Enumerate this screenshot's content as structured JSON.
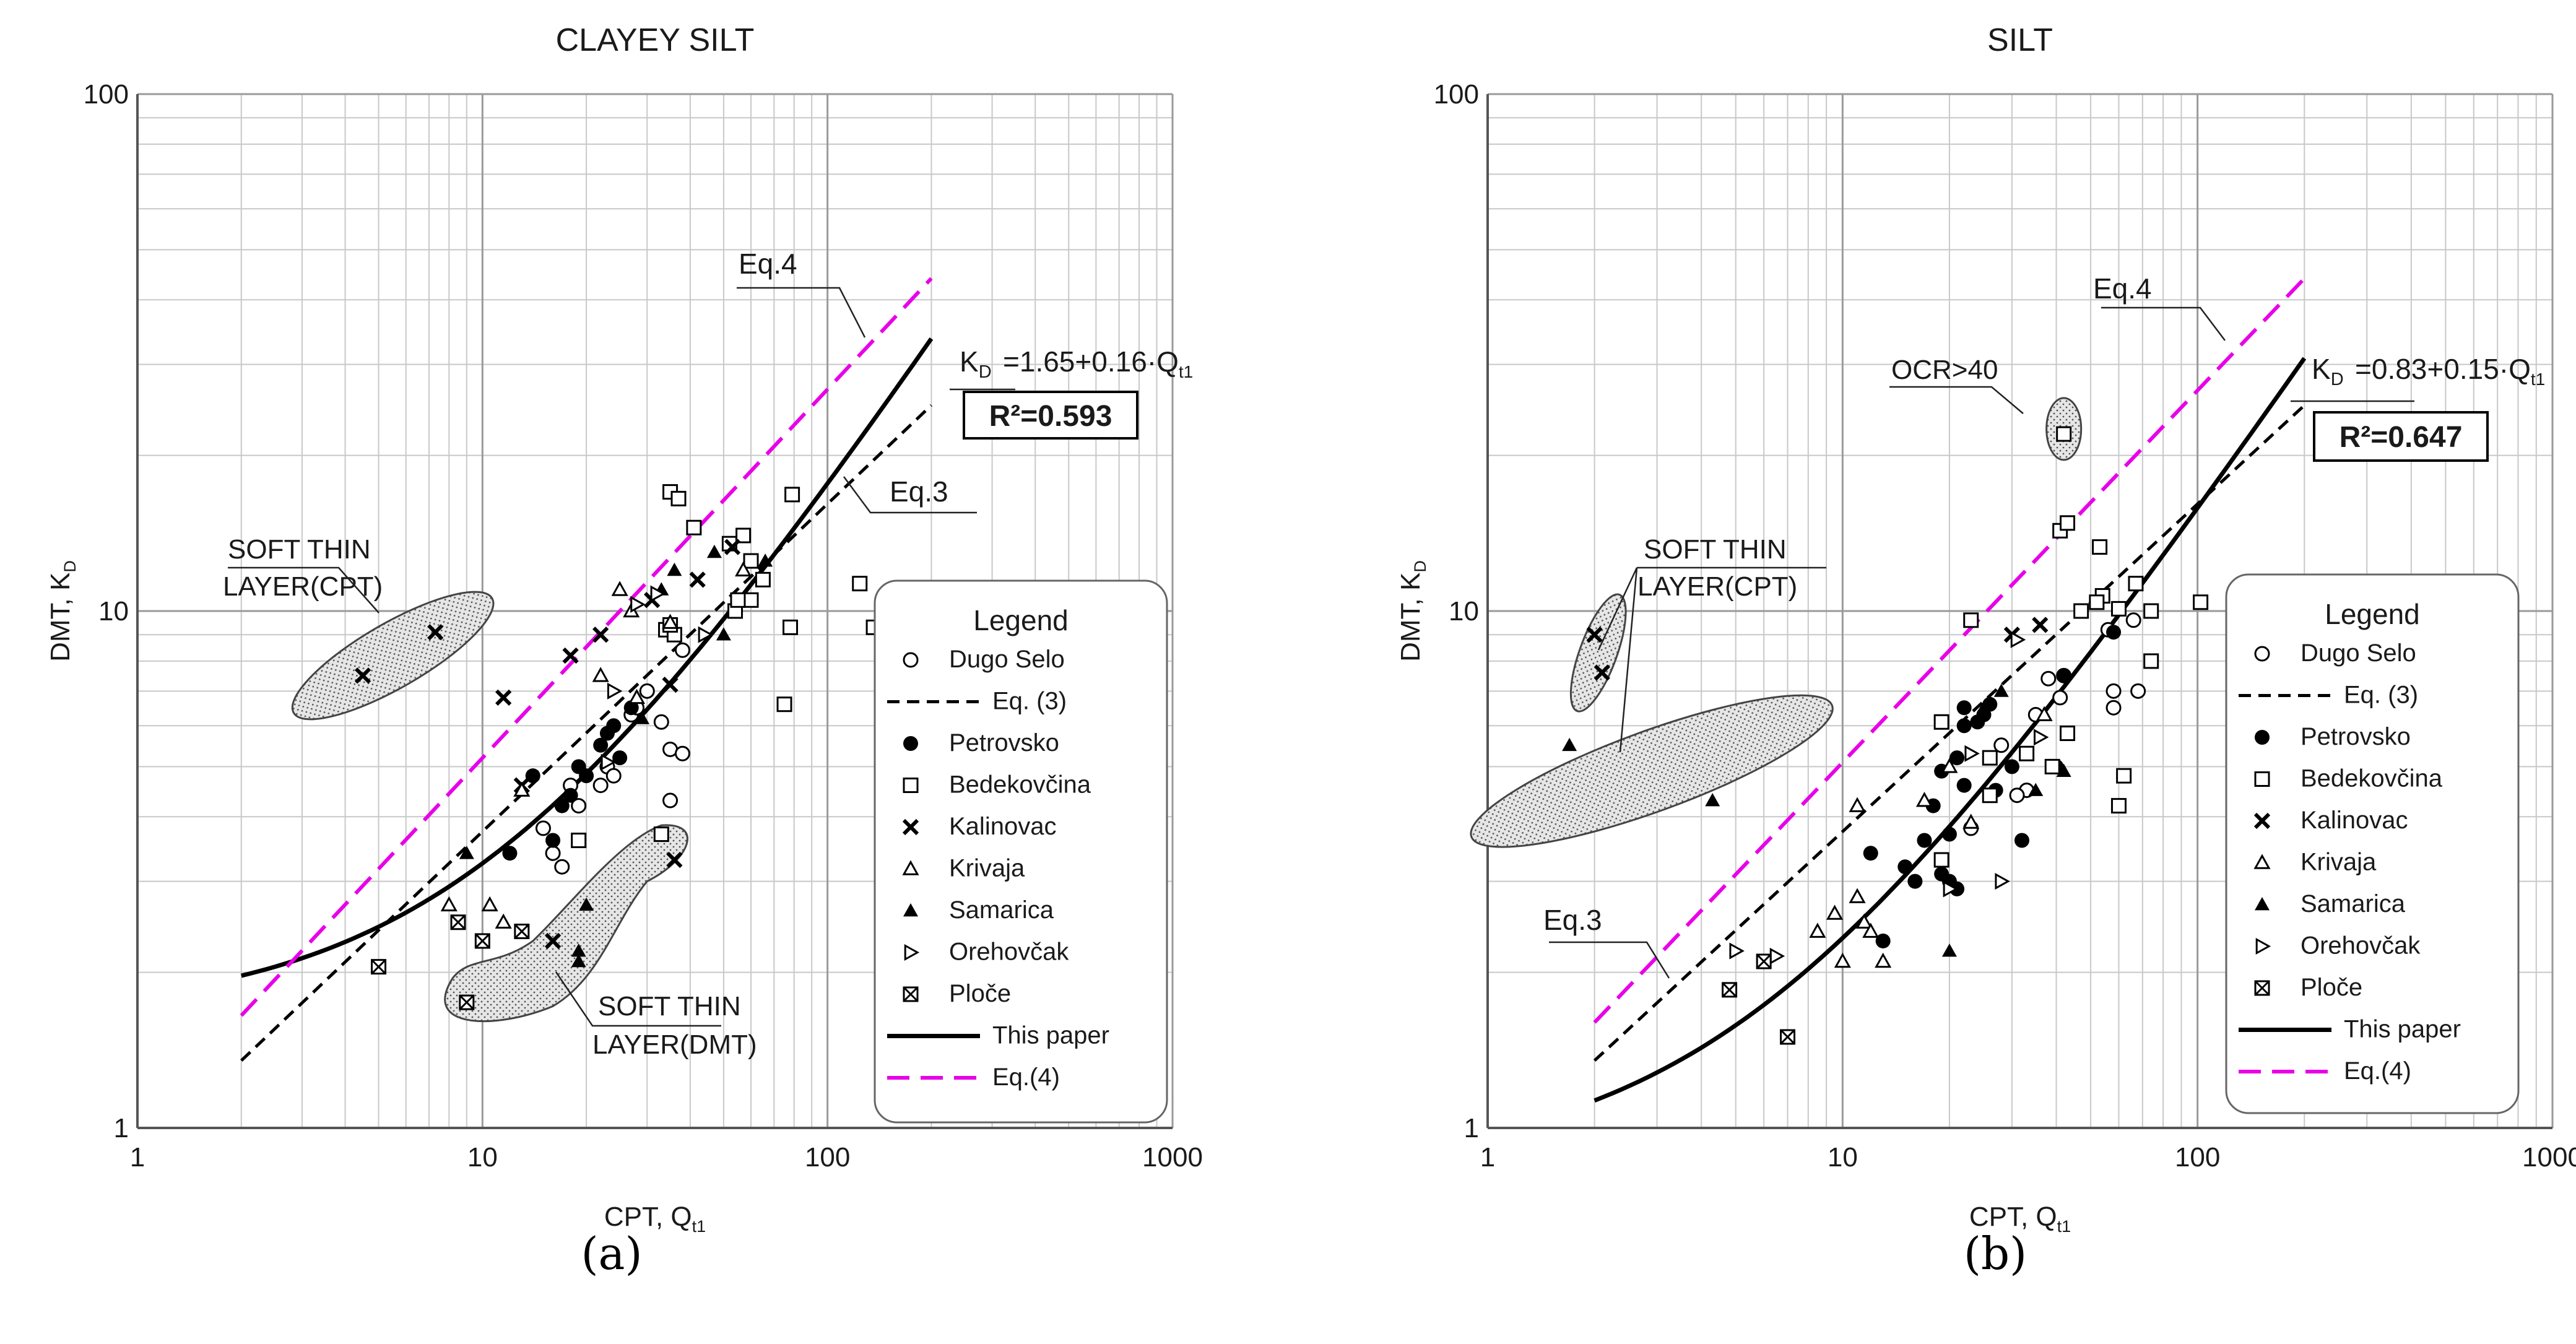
{
  "chart_data": [
    {
      "type": "scatter",
      "title": "CLAYEY SILT",
      "caption": "(a)",
      "xlabel": "CPT, Q",
      "xlabel_sub": "t1",
      "ylabel": "DMT, K",
      "ylabel_sub": "D",
      "xscale": "log",
      "yscale": "log",
      "xlim": [
        1,
        1000
      ],
      "ylim": [
        1,
        100
      ],
      "xticks": [
        "1",
        "10",
        "100",
        "1000"
      ],
      "yticks": [
        "1",
        "10",
        "100"
      ],
      "grid": true,
      "legend": {
        "title": "Legend",
        "position": "right"
      },
      "equation": {
        "prefix": "K",
        "prefix_sub": "D",
        "body": "=1.65+0.16·Q",
        "body_sub": "t1"
      },
      "r2": "R²=0.593",
      "annotations": {
        "eq4": "Eq.4",
        "eq3": "Eq.3",
        "soft_cpt": [
          "SOFT THIN",
          "LAYER(CPT)"
        ],
        "soft_dmt": [
          "SOFT THIN",
          "LAYER(DMT)"
        ]
      },
      "series": [
        {
          "name": "Dugo Selo",
          "marker": "circle-open",
          "points": [
            [
              16,
              3.4
            ],
            [
              17,
              3.2
            ],
            [
              19,
              4.2
            ],
            [
              22,
              4.6
            ],
            [
              23,
              5
            ],
            [
              24,
              4.8
            ],
            [
              27,
              6.3
            ],
            [
              28,
              6.5
            ],
            [
              30,
              7
            ],
            [
              33,
              6.1
            ],
            [
              35,
              5.4
            ],
            [
              38,
              5.3
            ],
            [
              35,
              4.3
            ],
            [
              38,
              8.4
            ],
            [
              15,
              3.8
            ],
            [
              18,
              4.6
            ]
          ]
        },
        {
          "name": "Petrovsko",
          "marker": "circle-filled",
          "points": [
            [
              14,
              4.8
            ],
            [
              16,
              3.6
            ],
            [
              18,
              4.4
            ],
            [
              19,
              5
            ],
            [
              20,
              4.8
            ],
            [
              22,
              5.5
            ],
            [
              24,
              6
            ],
            [
              25,
              5.2
            ],
            [
              27,
              6.5
            ],
            [
              12,
              3.4
            ],
            [
              17,
              4.2
            ],
            [
              23,
              5.8
            ]
          ]
        },
        {
          "name": "Bedekovčina",
          "marker": "square-open",
          "points": [
            [
              35,
              17
            ],
            [
              37,
              16.5
            ],
            [
              41,
              14.5
            ],
            [
              52,
              13.5
            ],
            [
              57,
              14
            ],
            [
              60,
              12.5
            ],
            [
              65,
              11.5
            ],
            [
              60,
              10.5
            ],
            [
              54,
              10
            ],
            [
              79,
              16.8
            ],
            [
              34,
              9.2
            ],
            [
              36,
              9
            ],
            [
              78,
              9.3
            ],
            [
              75,
              6.6
            ],
            [
              124,
              11.3
            ],
            [
              136,
              9.3
            ],
            [
              33,
              3.7
            ],
            [
              19,
              3.6
            ],
            [
              35,
              9.4
            ],
            [
              55,
              10.5
            ]
          ]
        },
        {
          "name": "Kalinovac",
          "marker": "x",
          "points": [
            [
              4.5,
              7.5
            ],
            [
              7.3,
              9.1
            ],
            [
              11.5,
              6.8
            ],
            [
              18,
              8.2
            ],
            [
              22,
              9
            ],
            [
              31,
              10.5
            ],
            [
              35,
              7.2
            ],
            [
              42,
              11.5
            ],
            [
              53,
              13.3
            ],
            [
              16,
              2.3
            ],
            [
              36,
              3.3
            ],
            [
              13,
              4.6
            ]
          ]
        },
        {
          "name": "Krivaja",
          "marker": "triangle-open",
          "points": [
            [
              8,
              2.7
            ],
            [
              10.5,
              2.7
            ],
            [
              11.5,
              2.5
            ],
            [
              27,
              10
            ],
            [
              35,
              9.5
            ],
            [
              25,
              11
            ],
            [
              22,
              7.5
            ],
            [
              13,
              4.5
            ],
            [
              28,
              6.8
            ],
            [
              57,
              12
            ]
          ]
        },
        {
          "name": "Samarica",
          "marker": "triangle-filled",
          "points": [
            [
              9,
              3.4
            ],
            [
              19,
              2.2
            ],
            [
              19,
              2.1
            ],
            [
              20,
              2.7
            ],
            [
              33,
              11
            ],
            [
              36,
              12
            ],
            [
              50,
              9
            ],
            [
              47,
              13
            ],
            [
              66,
              12.5
            ],
            [
              29,
              6.2
            ]
          ]
        },
        {
          "name": "Orehovčak",
          "marker": "triangle-right-open",
          "points": [
            [
              23,
              5.1
            ],
            [
              28,
              10.3
            ],
            [
              32,
              10.8
            ],
            [
              24,
              7
            ],
            [
              44,
              9
            ]
          ]
        },
        {
          "name": "Ploče",
          "marker": "square-x",
          "points": [
            [
              5,
              2.05
            ],
            [
              8.5,
              2.5
            ],
            [
              10,
              2.3
            ],
            [
              13,
              2.4
            ],
            [
              9,
              1.75
            ]
          ]
        },
        {
          "name": "This paper",
          "marker": "line-solid",
          "equation": {
            "a": 1.65,
            "b": 0.16
          },
          "x_range": [
            2,
            200
          ]
        },
        {
          "name": "Eq. (3)",
          "marker": "line-dashed",
          "points": [
            [
              2,
              1.35
            ],
            [
              200,
              25
            ]
          ]
        },
        {
          "name": "Eq.(4)",
          "marker": "line-magenta",
          "points": [
            [
              2,
              1.65
            ],
            [
              200,
              44
            ]
          ]
        }
      ]
    },
    {
      "type": "scatter",
      "title": "SILT",
      "caption": "(b)",
      "xlabel": "CPT, Q",
      "xlabel_sub": "t1",
      "ylabel": "DMT, K",
      "ylabel_sub": "D",
      "xscale": "log",
      "yscale": "log",
      "xlim": [
        1,
        1000
      ],
      "ylim": [
        1,
        100
      ],
      "xticks": [
        "1",
        "10",
        "100",
        "1000"
      ],
      "yticks": [
        "1",
        "10",
        "100"
      ],
      "grid": true,
      "legend": {
        "title": "Legend",
        "position": "right"
      },
      "equation": {
        "prefix": "K",
        "prefix_sub": "D",
        "body": "=0.83+0.15·Q",
        "body_sub": "t1"
      },
      "r2": "R²=0.647",
      "annotations": {
        "eq4": "Eq.4",
        "eq3": "Eq.3",
        "soft_cpt": [
          "SOFT THIN",
          "LAYER(CPT)"
        ],
        "ocr": "OCR>40"
      },
      "series": [
        {
          "name": "Dugo Selo",
          "marker": "circle-open",
          "points": [
            [
              38,
              7.4
            ],
            [
              42,
              7.5
            ],
            [
              58,
              7
            ],
            [
              68,
              7
            ],
            [
              58,
              6.5
            ],
            [
              66,
              9.6
            ],
            [
              56,
              9.2
            ],
            [
              33,
              4.5
            ],
            [
              31,
              4.4
            ],
            [
              41,
              6.8
            ],
            [
              23,
              3.8
            ],
            [
              28,
              5.5
            ],
            [
              35,
              6.3
            ]
          ]
        },
        {
          "name": "Petrovsko",
          "marker": "circle-filled",
          "points": [
            [
              12,
              3.4
            ],
            [
              13,
              2.3
            ],
            [
              15,
              3.2
            ],
            [
              17,
              3.6
            ],
            [
              18,
              4.2
            ],
            [
              19,
              3.1
            ],
            [
              20,
              3.7
            ],
            [
              21,
              5.2
            ],
            [
              22,
              4.6
            ],
            [
              22,
              6.5
            ],
            [
              24,
              6.1
            ],
            [
              25,
              6.3
            ],
            [
              26,
              6.6
            ],
            [
              27,
              4.5
            ],
            [
              30,
              5
            ],
            [
              32,
              3.6
            ],
            [
              40,
              5
            ],
            [
              42,
              7.5
            ],
            [
              58,
              9.1
            ],
            [
              19,
              4.9
            ],
            [
              20,
              3
            ],
            [
              16,
              3
            ],
            [
              21,
              2.9
            ],
            [
              22,
              6
            ]
          ]
        },
        {
          "name": "Bedekovčina",
          "marker": "square-open",
          "points": [
            [
              42,
              22
            ],
            [
              41,
              14.3
            ],
            [
              43,
              14.8
            ],
            [
              53,
              13.3
            ],
            [
              54,
              10.7
            ],
            [
              67,
              11.3
            ],
            [
              52,
              10.4
            ],
            [
              60,
              10.1
            ],
            [
              74,
              10
            ],
            [
              102,
              10.4
            ],
            [
              74,
              8
            ],
            [
              62,
              4.8
            ],
            [
              60,
              4.2
            ],
            [
              43,
              5.8
            ],
            [
              39,
              5
            ],
            [
              33,
              5.3
            ],
            [
              26,
              5.2
            ],
            [
              26,
              4.4
            ],
            [
              23,
              9.6
            ],
            [
              19,
              6.1
            ],
            [
              19,
              3.3
            ],
            [
              47,
              10
            ]
          ]
        },
        {
          "name": "Kalinovac",
          "marker": "x",
          "points": [
            [
              2,
              9
            ],
            [
              2.1,
              7.6
            ],
            [
              36,
              9.4
            ],
            [
              30,
              9
            ]
          ]
        },
        {
          "name": "Krivaja",
          "marker": "triangle-open",
          "points": [
            [
              9.5,
              2.6
            ],
            [
              10,
              2.1
            ],
            [
              11,
              2.8
            ],
            [
              11.5,
              2.5
            ],
            [
              12,
              2.4
            ],
            [
              13,
              2.1
            ],
            [
              8.5,
              2.4
            ],
            [
              11,
              4.2
            ],
            [
              17,
              4.3
            ],
            [
              23,
              3.9
            ],
            [
              20,
              5
            ],
            [
              37,
              6.3
            ]
          ]
        },
        {
          "name": "Samarica",
          "marker": "triangle-filled",
          "points": [
            [
              1.7,
              5.5
            ],
            [
              4.3,
              4.3
            ],
            [
              20,
              2.2
            ],
            [
              25,
              6.5
            ],
            [
              28,
              7
            ],
            [
              42,
              4.9
            ],
            [
              35,
              4.5
            ]
          ]
        },
        {
          "name": "Orehovčak",
          "marker": "triangle-right-open",
          "points": [
            [
              5,
              2.2
            ],
            [
              6.5,
              2.15
            ],
            [
              20,
              2.9
            ],
            [
              28,
              3
            ],
            [
              36,
              5.7
            ],
            [
              31,
              8.8
            ],
            [
              23,
              5.3
            ]
          ]
        },
        {
          "name": "Ploče",
          "marker": "square-x",
          "points": [
            [
              4.8,
              1.85
            ],
            [
              6,
              2.1
            ],
            [
              7,
              1.5
            ]
          ]
        },
        {
          "name": "This paper",
          "marker": "line-solid",
          "equation": {
            "a": 0.83,
            "b": 0.15
          },
          "x_range": [
            2,
            200
          ]
        },
        {
          "name": "Eq. (3)",
          "marker": "line-dashed",
          "points": [
            [
              2,
              1.35
            ],
            [
              200,
              25
            ]
          ]
        },
        {
          "name": "Eq.(4)",
          "marker": "line-magenta",
          "points": [
            [
              2,
              1.6
            ],
            [
              200,
              44
            ]
          ]
        }
      ]
    }
  ]
}
